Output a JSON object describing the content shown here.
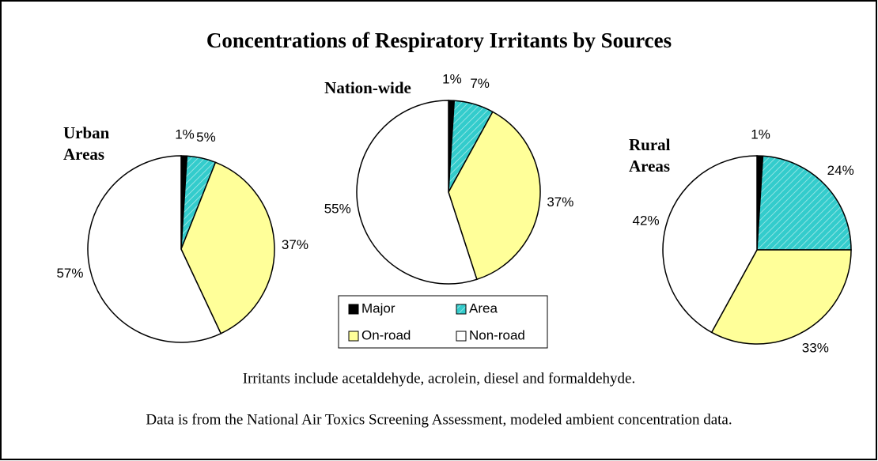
{
  "title": "Concentrations of Respiratory Irritants by Sources",
  "notes": [
    "Irritants include acetaldehyde, acrolein, diesel and formaldehyde.",
    "Data is from the National Air Toxics Screening Assessment, modeled ambient concentration data."
  ],
  "chart_data": {
    "type": "pie",
    "categories": [
      "Major",
      "Area",
      "On-road",
      "Non-road"
    ],
    "colors": [
      "#000000",
      "#33cccc",
      "#ffff99",
      "#ffffff"
    ],
    "series": [
      {
        "name": "Urban Areas",
        "values": [
          1,
          5,
          37,
          57
        ],
        "value_labels": [
          "1%",
          "5%",
          "37%",
          "57%"
        ]
      },
      {
        "name": "Nation-wide",
        "values": [
          1,
          7,
          37,
          55
        ],
        "value_labels": [
          "1%",
          "7%",
          "37%",
          "55%"
        ]
      },
      {
        "name": "Rural Areas",
        "values": [
          1,
          24,
          33,
          42
        ],
        "value_labels": [
          "1%",
          "24%",
          "33%",
          "42%"
        ]
      }
    ]
  }
}
